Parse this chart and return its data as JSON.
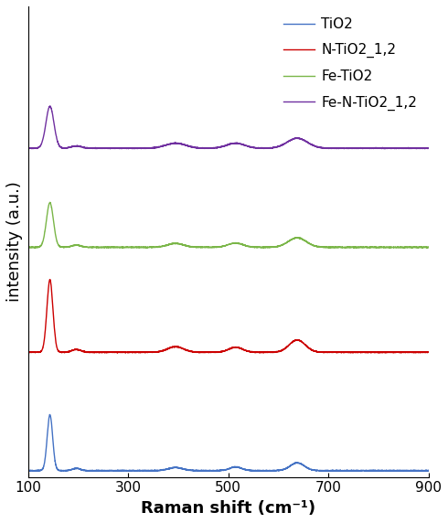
{
  "title": "",
  "xlabel": "Raman shift (cm⁻¹)",
  "ylabel": "intensity (a.u.)",
  "xlim": [
    100,
    900
  ],
  "xticks": [
    100,
    300,
    500,
    700,
    900
  ],
  "colors": {
    "TiO2": "#4472c4",
    "N-TiO2_1,2": "#cc0000",
    "Fe-TiO2": "#7ab648",
    "Fe-N-TiO2_1,2": "#7030a0"
  },
  "legend_labels": [
    "TiO2",
    "N-TiO2_1,2",
    "Fe-TiO2",
    "Fe-N-TiO2_1,2"
  ],
  "background_color": "#ffffff",
  "linewidth": 1.0
}
